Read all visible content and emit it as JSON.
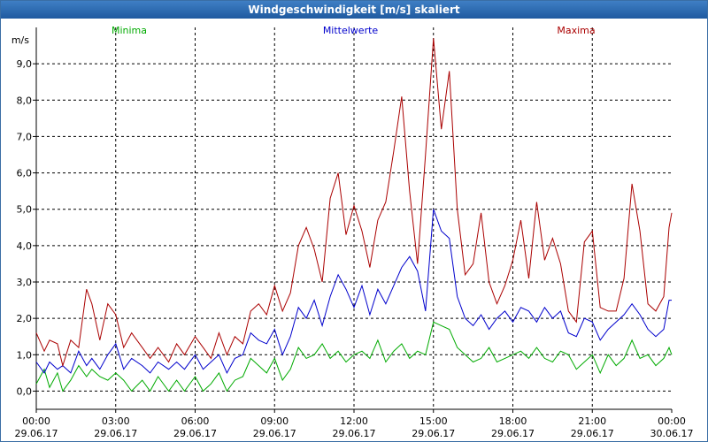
{
  "window": {
    "title": "Windgeschwindigkeit [m/s] skaliert"
  },
  "chart_data": {
    "type": "line",
    "title": "Windgeschwindigkeit [m/s] skaliert",
    "ylabel": "m/s",
    "ylim": [
      -0.5,
      10.0
    ],
    "yticks": [
      0.0,
      1.0,
      2.0,
      3.0,
      4.0,
      5.0,
      6.0,
      7.0,
      8.0,
      9.0
    ],
    "ytick_labels": [
      "0,0",
      "1,0",
      "2,0",
      "3,0",
      "4,0",
      "5,0",
      "6,0",
      "7,0",
      "8,0",
      "9,0"
    ],
    "xlim": [
      0,
      24
    ],
    "xticks": [
      0,
      3,
      6,
      9,
      12,
      15,
      18,
      21,
      24
    ],
    "xtick_labels": [
      {
        "time": "00:00",
        "date": "29.06.17"
      },
      {
        "time": "03:00",
        "date": "29.06.17"
      },
      {
        "time": "06:00",
        "date": "29.06.17"
      },
      {
        "time": "09:00",
        "date": "29.06.17"
      },
      {
        "time": "12:00",
        "date": "29.06.17"
      },
      {
        "time": "15:00",
        "date": "29.06.17"
      },
      {
        "time": "18:00",
        "date": "29.06.17"
      },
      {
        "time": "21:00",
        "date": "29.06.17"
      },
      {
        "time": "00:00",
        "date": "30.06.17"
      }
    ],
    "grid": true,
    "legend": "top",
    "series": [
      {
        "name": "Minima",
        "color": "#00aa00",
        "points": [
          [
            0,
            0.2
          ],
          [
            0.3,
            0.6
          ],
          [
            0.5,
            0.1
          ],
          [
            0.8,
            0.5
          ],
          [
            1.0,
            0.0
          ],
          [
            1.3,
            0.3
          ],
          [
            1.6,
            0.7
          ],
          [
            1.9,
            0.4
          ],
          [
            2.1,
            0.6
          ],
          [
            2.4,
            0.4
          ],
          [
            2.7,
            0.3
          ],
          [
            3.0,
            0.5
          ],
          [
            3.3,
            0.3
          ],
          [
            3.6,
            0.0
          ],
          [
            4.0,
            0.3
          ],
          [
            4.3,
            0.0
          ],
          [
            4.6,
            0.4
          ],
          [
            5.0,
            0.0
          ],
          [
            5.3,
            0.3
          ],
          [
            5.6,
            0.0
          ],
          [
            6.0,
            0.4
          ],
          [
            6.3,
            0.0
          ],
          [
            6.6,
            0.2
          ],
          [
            6.9,
            0.5
          ],
          [
            7.2,
            0.0
          ],
          [
            7.5,
            0.3
          ],
          [
            7.8,
            0.4
          ],
          [
            8.1,
            0.9
          ],
          [
            8.4,
            0.7
          ],
          [
            8.7,
            0.5
          ],
          [
            9.0,
            0.9
          ],
          [
            9.3,
            0.3
          ],
          [
            9.6,
            0.6
          ],
          [
            9.9,
            1.2
          ],
          [
            10.2,
            0.9
          ],
          [
            10.5,
            1.0
          ],
          [
            10.8,
            1.3
          ],
          [
            11.1,
            0.9
          ],
          [
            11.4,
            1.1
          ],
          [
            11.7,
            0.8
          ],
          [
            12.0,
            1.0
          ],
          [
            12.3,
            1.1
          ],
          [
            12.6,
            0.9
          ],
          [
            12.9,
            1.4
          ],
          [
            13.2,
            0.8
          ],
          [
            13.5,
            1.1
          ],
          [
            13.8,
            1.3
          ],
          [
            14.1,
            0.9
          ],
          [
            14.4,
            1.1
          ],
          [
            14.7,
            1.0
          ],
          [
            15.0,
            1.9
          ],
          [
            15.3,
            1.8
          ],
          [
            15.6,
            1.7
          ],
          [
            15.9,
            1.2
          ],
          [
            16.2,
            1.0
          ],
          [
            16.5,
            0.8
          ],
          [
            16.8,
            0.9
          ],
          [
            17.1,
            1.2
          ],
          [
            17.4,
            0.8
          ],
          [
            17.7,
            0.9
          ],
          [
            18.0,
            1.0
          ],
          [
            18.3,
            1.1
          ],
          [
            18.6,
            0.9
          ],
          [
            18.9,
            1.2
          ],
          [
            19.2,
            0.9
          ],
          [
            19.5,
            0.8
          ],
          [
            19.8,
            1.1
          ],
          [
            20.1,
            1.0
          ],
          [
            20.4,
            0.6
          ],
          [
            20.7,
            0.8
          ],
          [
            21.0,
            1.0
          ],
          [
            21.3,
            0.5
          ],
          [
            21.6,
            1.0
          ],
          [
            21.9,
            0.7
          ],
          [
            22.2,
            0.9
          ],
          [
            22.5,
            1.4
          ],
          [
            22.8,
            0.9
          ],
          [
            23.1,
            1.0
          ],
          [
            23.4,
            0.7
          ],
          [
            23.7,
            0.9
          ],
          [
            23.9,
            1.2
          ],
          [
            24.0,
            1.0
          ]
        ]
      },
      {
        "name": "Mittelwerte",
        "color": "#0000cc",
        "points": [
          [
            0,
            0.8
          ],
          [
            0.3,
            0.5
          ],
          [
            0.5,
            0.8
          ],
          [
            0.8,
            0.6
          ],
          [
            1.0,
            0.7
          ],
          [
            1.3,
            0.5
          ],
          [
            1.6,
            1.1
          ],
          [
            1.9,
            0.7
          ],
          [
            2.1,
            0.9
          ],
          [
            2.4,
            0.6
          ],
          [
            2.7,
            1.0
          ],
          [
            3.0,
            1.3
          ],
          [
            3.3,
            0.6
          ],
          [
            3.6,
            0.9
          ],
          [
            4.0,
            0.7
          ],
          [
            4.3,
            0.5
          ],
          [
            4.6,
            0.8
          ],
          [
            5.0,
            0.6
          ],
          [
            5.3,
            0.8
          ],
          [
            5.6,
            0.6
          ],
          [
            6.0,
            1.0
          ],
          [
            6.3,
            0.6
          ],
          [
            6.6,
            0.8
          ],
          [
            6.9,
            1.0
          ],
          [
            7.2,
            0.5
          ],
          [
            7.5,
            0.9
          ],
          [
            7.8,
            1.0
          ],
          [
            8.1,
            1.6
          ],
          [
            8.4,
            1.4
          ],
          [
            8.7,
            1.3
          ],
          [
            9.0,
            1.7
          ],
          [
            9.3,
            1.0
          ],
          [
            9.6,
            1.5
          ],
          [
            9.9,
            2.3
          ],
          [
            10.2,
            2.0
          ],
          [
            10.5,
            2.5
          ],
          [
            10.8,
            1.8
          ],
          [
            11.1,
            2.6
          ],
          [
            11.4,
            3.2
          ],
          [
            11.7,
            2.8
          ],
          [
            12.0,
            2.3
          ],
          [
            12.3,
            2.9
          ],
          [
            12.6,
            2.1
          ],
          [
            12.9,
            2.8
          ],
          [
            13.2,
            2.4
          ],
          [
            13.5,
            2.9
          ],
          [
            13.8,
            3.4
          ],
          [
            14.1,
            3.7
          ],
          [
            14.4,
            3.3
          ],
          [
            14.7,
            2.2
          ],
          [
            15.0,
            5.0
          ],
          [
            15.3,
            4.4
          ],
          [
            15.6,
            4.2
          ],
          [
            15.9,
            2.6
          ],
          [
            16.2,
            2.0
          ],
          [
            16.5,
            1.8
          ],
          [
            16.8,
            2.1
          ],
          [
            17.1,
            1.7
          ],
          [
            17.4,
            2.0
          ],
          [
            17.7,
            2.2
          ],
          [
            18.0,
            1.9
          ],
          [
            18.3,
            2.3
          ],
          [
            18.6,
            2.2
          ],
          [
            18.9,
            1.9
          ],
          [
            19.2,
            2.3
          ],
          [
            19.5,
            2.0
          ],
          [
            19.8,
            2.2
          ],
          [
            20.1,
            1.6
          ],
          [
            20.4,
            1.5
          ],
          [
            20.7,
            2.0
          ],
          [
            21.0,
            1.9
          ],
          [
            21.3,
            1.4
          ],
          [
            21.6,
            1.7
          ],
          [
            21.9,
            1.9
          ],
          [
            22.2,
            2.1
          ],
          [
            22.5,
            2.4
          ],
          [
            22.8,
            2.1
          ],
          [
            23.1,
            1.7
          ],
          [
            23.4,
            1.5
          ],
          [
            23.7,
            1.7
          ],
          [
            23.9,
            2.5
          ],
          [
            24.0,
            2.5
          ]
        ]
      },
      {
        "name": "Maxima",
        "color": "#aa0000",
        "points": [
          [
            0,
            1.6
          ],
          [
            0.3,
            1.1
          ],
          [
            0.5,
            1.4
          ],
          [
            0.8,
            1.3
          ],
          [
            1.0,
            0.7
          ],
          [
            1.3,
            1.4
          ],
          [
            1.6,
            1.2
          ],
          [
            1.9,
            2.8
          ],
          [
            2.1,
            2.4
          ],
          [
            2.4,
            1.4
          ],
          [
            2.7,
            2.4
          ],
          [
            3.0,
            2.1
          ],
          [
            3.3,
            1.2
          ],
          [
            3.6,
            1.6
          ],
          [
            4.0,
            1.2
          ],
          [
            4.3,
            0.9
          ],
          [
            4.6,
            1.2
          ],
          [
            5.0,
            0.8
          ],
          [
            5.3,
            1.3
          ],
          [
            5.6,
            1.0
          ],
          [
            6.0,
            1.5
          ],
          [
            6.3,
            1.2
          ],
          [
            6.6,
            0.9
          ],
          [
            6.9,
            1.6
          ],
          [
            7.2,
            1.0
          ],
          [
            7.5,
            1.5
          ],
          [
            7.8,
            1.3
          ],
          [
            8.1,
            2.2
          ],
          [
            8.4,
            2.4
          ],
          [
            8.7,
            2.1
          ],
          [
            9.0,
            2.9
          ],
          [
            9.3,
            2.2
          ],
          [
            9.6,
            2.7
          ],
          [
            9.9,
            4.0
          ],
          [
            10.2,
            4.5
          ],
          [
            10.5,
            3.9
          ],
          [
            10.8,
            3.0
          ],
          [
            11.1,
            5.3
          ],
          [
            11.4,
            6.0
          ],
          [
            11.7,
            4.3
          ],
          [
            12.0,
            5.1
          ],
          [
            12.3,
            4.4
          ],
          [
            12.6,
            3.4
          ],
          [
            12.9,
            4.7
          ],
          [
            13.2,
            5.2
          ],
          [
            13.5,
            6.6
          ],
          [
            13.8,
            8.1
          ],
          [
            14.1,
            5.5
          ],
          [
            14.4,
            3.5
          ],
          [
            14.7,
            6.5
          ],
          [
            15.0,
            9.7
          ],
          [
            15.3,
            7.2
          ],
          [
            15.6,
            8.8
          ],
          [
            15.9,
            5.0
          ],
          [
            16.2,
            3.2
          ],
          [
            16.5,
            3.5
          ],
          [
            16.8,
            4.9
          ],
          [
            17.1,
            3.0
          ],
          [
            17.4,
            2.4
          ],
          [
            17.7,
            2.9
          ],
          [
            18.0,
            3.6
          ],
          [
            18.3,
            4.7
          ],
          [
            18.6,
            3.1
          ],
          [
            18.9,
            5.2
          ],
          [
            19.2,
            3.6
          ],
          [
            19.5,
            4.2
          ],
          [
            19.8,
            3.5
          ],
          [
            20.1,
            2.2
          ],
          [
            20.4,
            1.9
          ],
          [
            20.7,
            4.1
          ],
          [
            21.0,
            4.4
          ],
          [
            21.3,
            2.3
          ],
          [
            21.6,
            2.2
          ],
          [
            21.9,
            2.2
          ],
          [
            22.2,
            3.1
          ],
          [
            22.5,
            5.7
          ],
          [
            22.8,
            4.4
          ],
          [
            23.1,
            2.4
          ],
          [
            23.4,
            2.2
          ],
          [
            23.7,
            2.6
          ],
          [
            23.9,
            4.5
          ],
          [
            24.0,
            4.9
          ]
        ]
      }
    ]
  }
}
